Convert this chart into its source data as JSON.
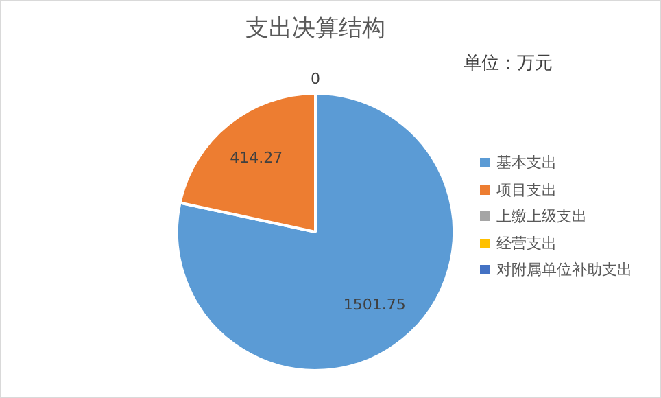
{
  "chart_data": {
    "type": "pie",
    "title": "支出决算结构",
    "subtitle": "单位：万元",
    "categories": [
      "基本支出",
      "项目支出",
      "上缴上级支出",
      "经营支出",
      "对附属单位补助支出"
    ],
    "values": [
      1501.75,
      414.27,
      0,
      0,
      0
    ],
    "colors": [
      "#5b9bd5",
      "#ed7d31",
      "#a5a5a5",
      "#ffc000",
      "#4472c4"
    ],
    "value_labels": [
      "1501.75",
      "414.27",
      "0",
      null,
      null
    ],
    "legend": "right"
  }
}
